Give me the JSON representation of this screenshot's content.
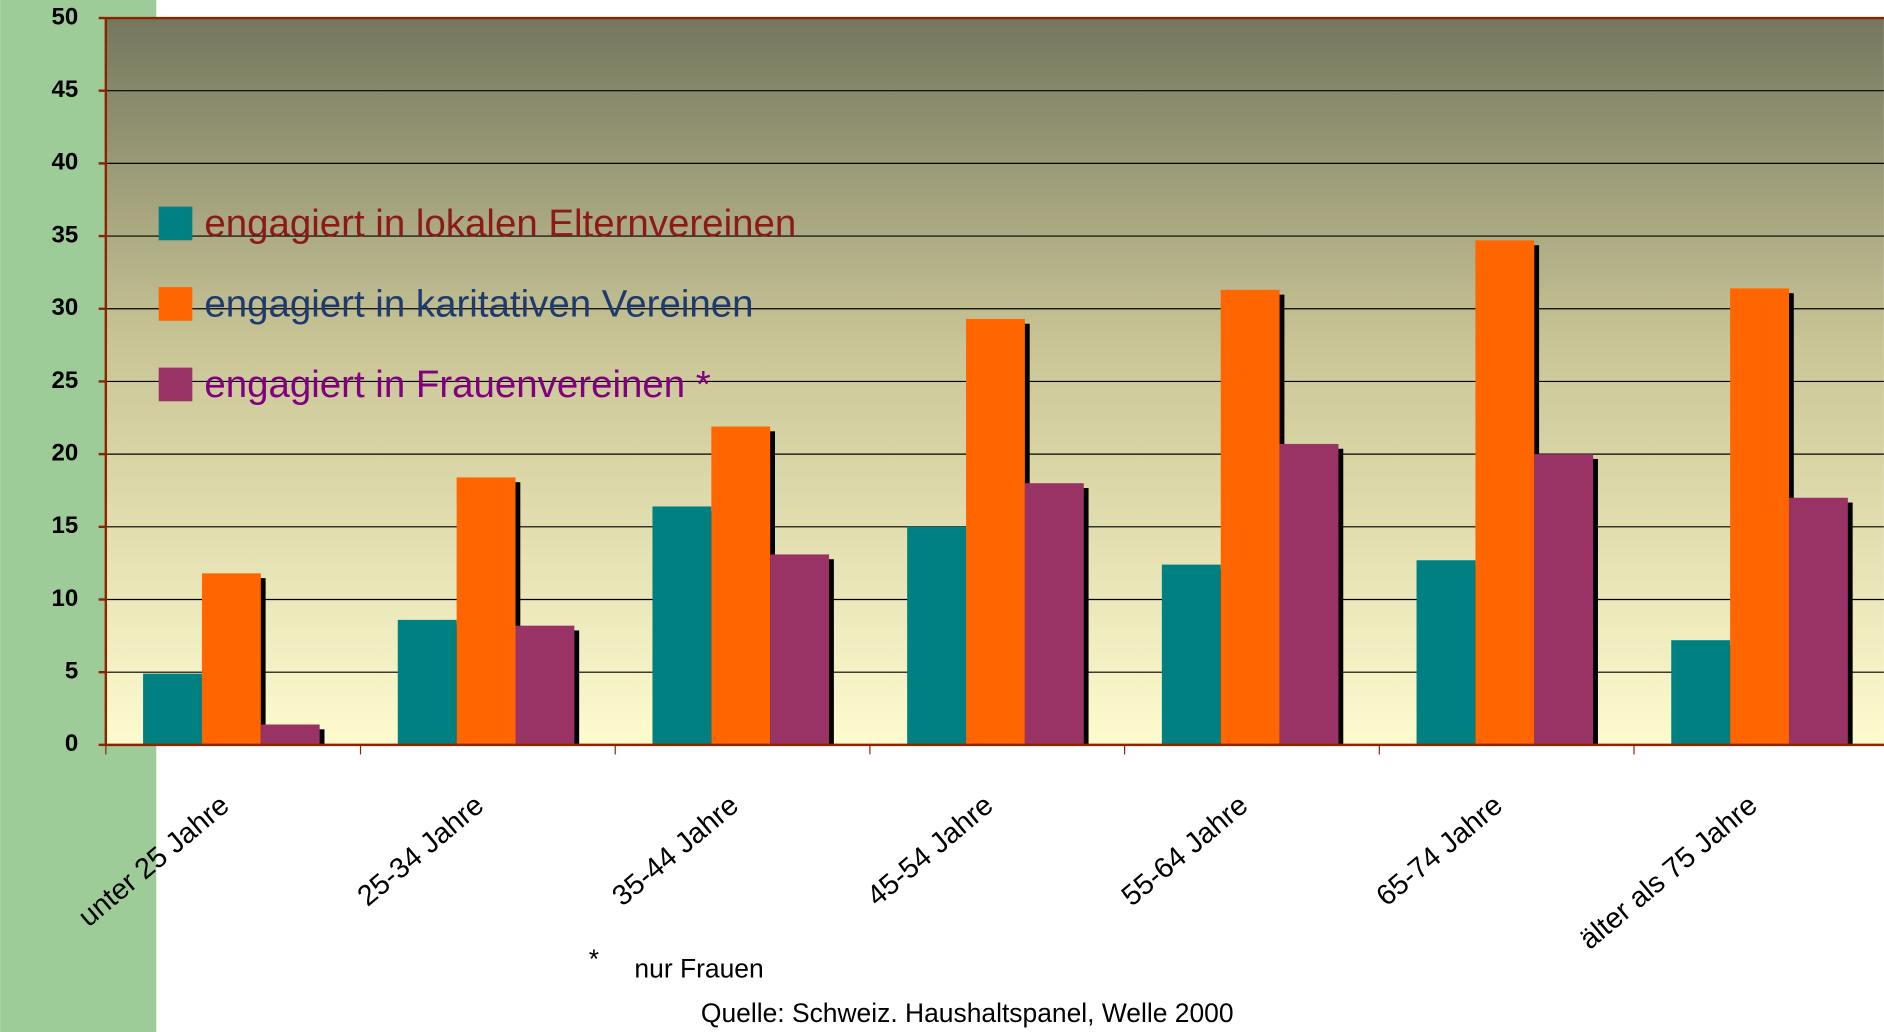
{
  "chart_data": {
    "type": "bar",
    "categories": [
      "unter 25 Jahre",
      "25-34 Jahre",
      "35-44 Jahre",
      "45-54 Jahre",
      "55-64 Jahre",
      "65-74 Jahre",
      "älter als 75 Jahre"
    ],
    "series": [
      {
        "name": "engagiert in lokalen Elternvereinen",
        "color": "#008080",
        "text_color": "#8b1a1a",
        "values": [
          4.9,
          8.6,
          16.4,
          15.0,
          12.4,
          12.7,
          7.2
        ]
      },
      {
        "name": "engagiert in karitativen Vereinen",
        "color": "#ff6600",
        "text_color": "#1f3a6e",
        "values": [
          11.8,
          18.4,
          21.9,
          29.3,
          31.3,
          34.7,
          31.4
        ]
      },
      {
        "name": "engagiert in Frauenvereinen *",
        "color": "#993366",
        "text_color": "#800080",
        "values": [
          1.4,
          8.2,
          13.1,
          18.0,
          20.7,
          20.0,
          17.0
        ]
      }
    ],
    "ylim": [
      0,
      50
    ],
    "yticks": [
      0,
      5,
      10,
      15,
      20,
      25,
      30,
      35,
      40,
      45,
      50
    ],
    "grid": true,
    "legend": "top-left",
    "footnote_marker": "*",
    "footnote": "nur Frauen",
    "source": "Quelle: Schweiz. Haushaltspanel, Welle 2000"
  }
}
